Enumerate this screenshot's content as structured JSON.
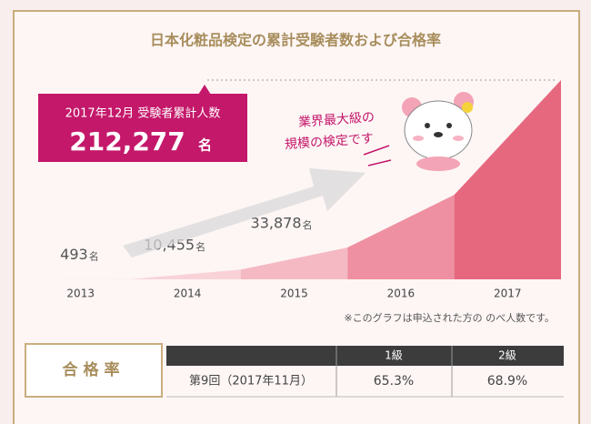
{
  "chart_data": {
    "type": "area",
    "title": "日本化粧品検定の累計受験者数および合格率",
    "categories": [
      "2013",
      "2014",
      "2015",
      "2016",
      "2017"
    ],
    "values": [
      493,
      10455,
      33878,
      90000,
      212277
    ],
    "value_labels": [
      "493",
      "10,455",
      "33,878",
      null,
      "212,277"
    ],
    "value_unit": "名",
    "colors": [
      "#fbe4e6",
      "#f9d2d8",
      "#f5b9c3",
      "#ee90a1",
      "#e6687f"
    ],
    "note": "※このグラフは申込された方の のべ人数です。"
  },
  "callout": {
    "title": "2017年12月 受験者累計人数"
  },
  "speech": [
    "業界最大級の",
    "規模の検定です"
  ],
  "pass_rate": {
    "label": "合格率",
    "header": [
      "1級",
      "2級"
    ],
    "rows": [
      [
        "第9回（2017年11月）",
        "65.3%",
        "68.9%"
      ]
    ]
  }
}
